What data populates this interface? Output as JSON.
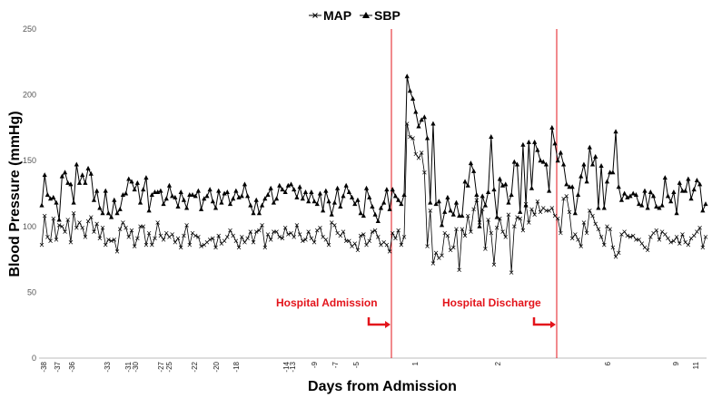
{
  "chart_data": {
    "type": "line",
    "xlabel": "Days from Admission",
    "ylabel": "Blood Pressure (mmHg)",
    "ylim": [
      0,
      250
    ],
    "yticks": [
      0,
      50,
      100,
      150,
      200,
      250
    ],
    "grid": false,
    "legend_position": "top-center",
    "x_tick_labels": [
      "-38",
      "-37",
      "-36",
      "-33",
      "-31",
      "-30",
      "-27",
      "-25",
      "-22",
      "-20",
      "-18",
      "-14",
      "-13",
      "-9",
      "-7",
      "-5",
      "1",
      "2",
      "6",
      "9",
      "11"
    ],
    "series": [
      {
        "name": "MAP",
        "marker": "x",
        "values": [
          86,
          108,
          92,
          89,
          106,
          90,
          101,
          100,
          96,
          105,
          88,
          110,
          99,
          103,
          99,
          92,
          104,
          107,
          96,
          102,
          91,
          99,
          86,
          90,
          89,
          90,
          81,
          98,
          103,
          99,
          92,
          97,
          85,
          91,
          100,
          100,
          86,
          95,
          86,
          91,
          103,
          93,
          90,
          95,
          92,
          94,
          88,
          91,
          84,
          93,
          101,
          86,
          95,
          93,
          92,
          85,
          86,
          88,
          90,
          91,
          84,
          93,
          87,
          89,
          92,
          97,
          93,
          89,
          84,
          92,
          88,
          91,
          96,
          88,
          96,
          97,
          101,
          84,
          94,
          90,
          96,
          96,
          92,
          91,
          99,
          94,
          95,
          92,
          101,
          94,
          89,
          90,
          96,
          91,
          88,
          97,
          99,
          92,
          90,
          86,
          103,
          101,
          95,
          93,
          96,
          89,
          89,
          85,
          87,
          82,
          93,
          94,
          86,
          89,
          96,
          97,
          92,
          86,
          88,
          86,
          81,
          95,
          91,
          97,
          86,
          92,
          178,
          168,
          167,
          155,
          152,
          156,
          141,
          85,
          112,
          72,
          80,
          76,
          78,
          95,
          93,
          82,
          84,
          98,
          67,
          98,
          93,
          108,
          96,
          113,
          120,
          103,
          113,
          83,
          105,
          95,
          71,
          99,
          106,
          96,
          92,
          109,
          65,
          100,
          107,
          106,
          97,
          117,
          103,
          113,
          109,
          119,
          111,
          114,
          112,
          112,
          114,
          108,
          106,
          95,
          121,
          123,
          111,
          91,
          94,
          90,
          85,
          103,
          95,
          112,
          108,
          102,
          98,
          92,
          86,
          100,
          98,
          84,
          77,
          80,
          94,
          96,
          93,
          92,
          93,
          90,
          90,
          87,
          84,
          82,
          92,
          95,
          97,
          90,
          96,
          94,
          91,
          88,
          89,
          92,
          87,
          94,
          88,
          86,
          91,
          93,
          96,
          99,
          84,
          92
        ]
      },
      {
        "name": "SBP",
        "marker": "triangle",
        "values": [
          116,
          139,
          124,
          121,
          122,
          118,
          105,
          138,
          141,
          133,
          132,
          118,
          147,
          133,
          139,
          133,
          144,
          140,
          120,
          127,
          114,
          110,
          127,
          110,
          107,
          120,
          110,
          113,
          124,
          125,
          136,
          134,
          128,
          133,
          118,
          128,
          137,
          112,
          124,
          126,
          126,
          127,
          117,
          121,
          131,
          123,
          122,
          115,
          126,
          120,
          114,
          124,
          124,
          123,
          127,
          113,
          121,
          123,
          128,
          119,
          114,
          127,
          118,
          125,
          126,
          117,
          121,
          127,
          122,
          123,
          132,
          123,
          116,
          110,
          120,
          110,
          116,
          121,
          124,
          129,
          118,
          121,
          131,
          128,
          126,
          131,
          132,
          128,
          122,
          130,
          121,
          126,
          119,
          126,
          119,
          117,
          125,
          112,
          127,
          119,
          109,
          118,
          129,
          115,
          123,
          131,
          126,
          122,
          117,
          120,
          110,
          108,
          129,
          122,
          115,
          109,
          104,
          114,
          118,
          128,
          113,
          128,
          123,
          120,
          117,
          124,
          214,
          203,
          197,
          187,
          176,
          181,
          183,
          167,
          118,
          178,
          117,
          119,
          101,
          111,
          122,
          112,
          109,
          118,
          108,
          108,
          134,
          131,
          148,
          142,
          124,
          100,
          123,
          116,
          126,
          168,
          128,
          107,
          136,
          131,
          132,
          118,
          124,
          149,
          147,
          111,
          162,
          116,
          164,
          129,
          164,
          158,
          150,
          149,
          147,
          127,
          175,
          163,
          150,
          156,
          147,
          132,
          130,
          130,
          110,
          124,
          138,
          147,
          134,
          160,
          147,
          153,
          114,
          146,
          114,
          134,
          141,
          141,
          172,
          130,
          120,
          125,
          122,
          123,
          125,
          124,
          117,
          116,
          127,
          114,
          126,
          123,
          115,
          114,
          116,
          137,
          123,
          119,
          126,
          110,
          133,
          127,
          127,
          136,
          121,
          128,
          135,
          132,
          112,
          117
        ]
      }
    ],
    "annotations": [
      {
        "label": "Hospital Admission",
        "color": "#e3141b"
      },
      {
        "label": "Hospital Discharge",
        "color": "#e3141b"
      }
    ]
  }
}
